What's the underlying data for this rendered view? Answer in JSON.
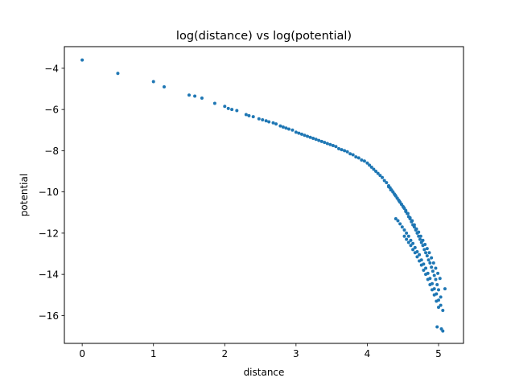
{
  "chart_data": {
    "type": "scatter",
    "title": "log(distance) vs log(potential)",
    "xlabel": "distance",
    "ylabel": "potential",
    "xlim": [
      -0.25,
      5.35
    ],
    "ylim": [
      -17.35,
      -2.95
    ],
    "xticks": [
      0,
      1,
      2,
      3,
      4,
      5
    ],
    "xtick_labels": [
      "0",
      "1",
      "2",
      "3",
      "4",
      "5"
    ],
    "yticks": [
      -4,
      -6,
      -8,
      -10,
      -12,
      -14,
      -16
    ],
    "ytick_labels": [
      "−4",
      "−6",
      "−8",
      "−10",
      "−12",
      "−14",
      "−16"
    ],
    "grid": false,
    "marker_color": "#1f77b4",
    "series": [
      {
        "x": [
          0.0,
          0.5,
          1.0,
          1.15,
          1.5,
          1.58,
          1.68,
          1.86,
          2.0,
          2.05,
          2.1,
          2.17,
          2.3,
          2.34,
          2.4,
          2.48,
          2.53,
          2.58,
          2.62,
          2.68,
          2.72,
          2.78,
          2.82,
          2.86,
          2.9,
          2.95,
          3.0,
          3.04,
          3.08,
          3.12,
          3.16,
          3.2,
          3.24,
          3.28,
          3.32,
          3.36,
          3.4,
          3.44,
          3.48,
          3.52,
          3.56,
          3.6,
          3.64,
          3.68,
          3.72,
          3.76,
          3.8,
          3.84,
          3.88,
          3.92,
          3.96,
          4.0,
          4.03,
          4.06,
          4.09,
          4.12,
          4.15,
          4.18,
          4.21,
          4.24,
          4.27,
          4.3,
          4.32,
          4.34,
          4.36,
          4.38,
          4.4,
          4.42,
          4.44,
          4.46,
          4.48,
          4.5,
          4.52,
          4.54,
          4.56,
          4.58,
          4.6,
          4.62,
          4.64,
          4.66,
          4.68,
          4.7,
          4.72,
          4.74,
          4.76,
          4.78,
          4.8,
          4.82,
          4.84,
          4.86,
          4.88,
          4.9,
          4.92,
          4.94,
          4.96,
          4.98,
          5.0,
          4.3,
          4.33,
          4.36,
          4.39,
          4.42,
          4.45,
          4.48,
          4.51,
          4.54,
          4.57,
          4.6,
          4.63,
          4.66,
          4.69,
          4.72,
          4.75,
          4.78,
          4.81,
          4.84,
          4.87,
          4.9,
          4.93,
          4.96,
          4.99,
          5.02,
          4.4,
          4.43,
          4.46,
          4.49,
          4.52,
          4.55,
          4.58,
          4.61,
          4.64,
          4.67,
          4.7,
          4.73,
          4.76,
          4.79,
          4.82,
          4.85,
          4.88,
          4.91,
          4.94,
          4.97,
          5.0,
          5.03,
          5.06,
          4.52,
          4.55,
          4.58,
          4.61,
          4.64,
          4.67,
          4.7,
          4.73,
          4.76,
          4.79,
          4.82,
          4.85,
          4.88,
          4.91,
          4.94,
          4.97,
          5.0,
          5.03,
          4.98,
          5.04,
          5.06,
          5.09
        ],
        "y": [
          -3.6,
          -4.25,
          -4.65,
          -4.9,
          -5.3,
          -5.35,
          -5.45,
          -5.7,
          -5.85,
          -5.95,
          -6.0,
          -6.05,
          -6.25,
          -6.3,
          -6.35,
          -6.45,
          -6.5,
          -6.55,
          -6.6,
          -6.65,
          -6.7,
          -6.8,
          -6.85,
          -6.9,
          -6.95,
          -7.0,
          -7.1,
          -7.15,
          -7.2,
          -7.25,
          -7.3,
          -7.35,
          -7.4,
          -7.45,
          -7.5,
          -7.55,
          -7.6,
          -7.65,
          -7.7,
          -7.75,
          -7.8,
          -7.9,
          -7.95,
          -8.0,
          -8.05,
          -8.15,
          -8.2,
          -8.3,
          -8.35,
          -8.45,
          -8.5,
          -8.6,
          -8.7,
          -8.8,
          -8.9,
          -9.0,
          -9.1,
          -9.2,
          -9.3,
          -9.45,
          -9.55,
          -9.7,
          -9.8,
          -9.9,
          -10.0,
          -10.1,
          -10.2,
          -10.3,
          -10.4,
          -10.5,
          -10.6,
          -10.7,
          -10.8,
          -10.95,
          -11.05,
          -11.2,
          -11.3,
          -11.45,
          -11.6,
          -11.7,
          -11.85,
          -12.0,
          -12.15,
          -12.3,
          -12.45,
          -12.6,
          -12.8,
          -12.95,
          -13.1,
          -13.3,
          -13.45,
          -13.65,
          -13.85,
          -14.05,
          -14.25,
          -14.5,
          -14.75,
          -9.75,
          -9.9,
          -10.0,
          -10.15,
          -10.3,
          -10.45,
          -10.6,
          -10.75,
          -10.9,
          -11.05,
          -11.25,
          -11.4,
          -11.6,
          -11.8,
          -11.95,
          -12.15,
          -12.35,
          -12.55,
          -12.75,
          -12.95,
          -13.2,
          -13.45,
          -13.7,
          -13.95,
          -14.2,
          -11.3,
          -11.4,
          -11.55,
          -11.7,
          -11.85,
          -12.0,
          -12.15,
          -12.35,
          -12.5,
          -12.7,
          -12.9,
          -13.05,
          -13.3,
          -13.5,
          -13.7,
          -13.95,
          -14.2,
          -14.45,
          -14.7,
          -14.95,
          -15.25,
          -15.5,
          -15.75,
          -12.15,
          -12.3,
          -12.45,
          -12.6,
          -12.8,
          -12.95,
          -13.15,
          -13.35,
          -13.55,
          -13.8,
          -14.0,
          -14.25,
          -14.5,
          -14.75,
          -15.0,
          -15.3,
          -15.6,
          -15.1,
          -16.55,
          -16.65,
          -16.75,
          -14.7
        ]
      }
    ]
  }
}
